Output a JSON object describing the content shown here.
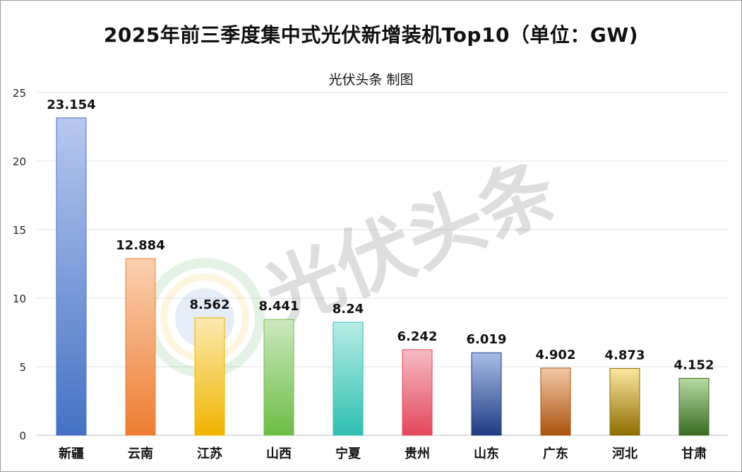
{
  "title": "2025年前三季度集中式光伏新增装机Top10（单位：GW)",
  "subtitle": "光伏头条 制图",
  "watermark": {
    "text": "光伏头条",
    "logo": "sun-globe-logo-icon"
  },
  "chart_data": {
    "type": "bar",
    "categories": [
      "新疆",
      "云南",
      "江苏",
      "山西",
      "宁夏",
      "贵州",
      "山东",
      "广东",
      "河北",
      "甘肃"
    ],
    "values": [
      23.154,
      12.884,
      8.562,
      8.441,
      8.24,
      6.242,
      6.019,
      4.902,
      4.873,
      4.152
    ],
    "value_labels": [
      "23.154",
      "12.884",
      "8.562",
      "8.441",
      "8.24",
      "6.242",
      "6.019",
      "4.902",
      "4.873",
      "4.152"
    ],
    "ylim": [
      0,
      25
    ],
    "yticks": [
      "0",
      "5",
      "10",
      "15",
      "20",
      "25"
    ],
    "grid": true,
    "legend": "none",
    "bar_colors": [
      [
        "#b8c8ef",
        "#4472c4"
      ],
      [
        "#fbd0b0",
        "#ed7d31"
      ],
      [
        "#fbeab0",
        "#f0b400"
      ],
      [
        "#cce8bf",
        "#6cbd45"
      ],
      [
        "#b8ede6",
        "#2ebfb0"
      ],
      [
        "#f6bcc4",
        "#e3475a"
      ],
      [
        "#a9bde6",
        "#1f3c82"
      ],
      [
        "#f3c8a6",
        "#a9530f"
      ],
      [
        "#fbe7a0",
        "#8f6d00"
      ],
      [
        "#b6dba2",
        "#3a6b22"
      ]
    ]
  }
}
